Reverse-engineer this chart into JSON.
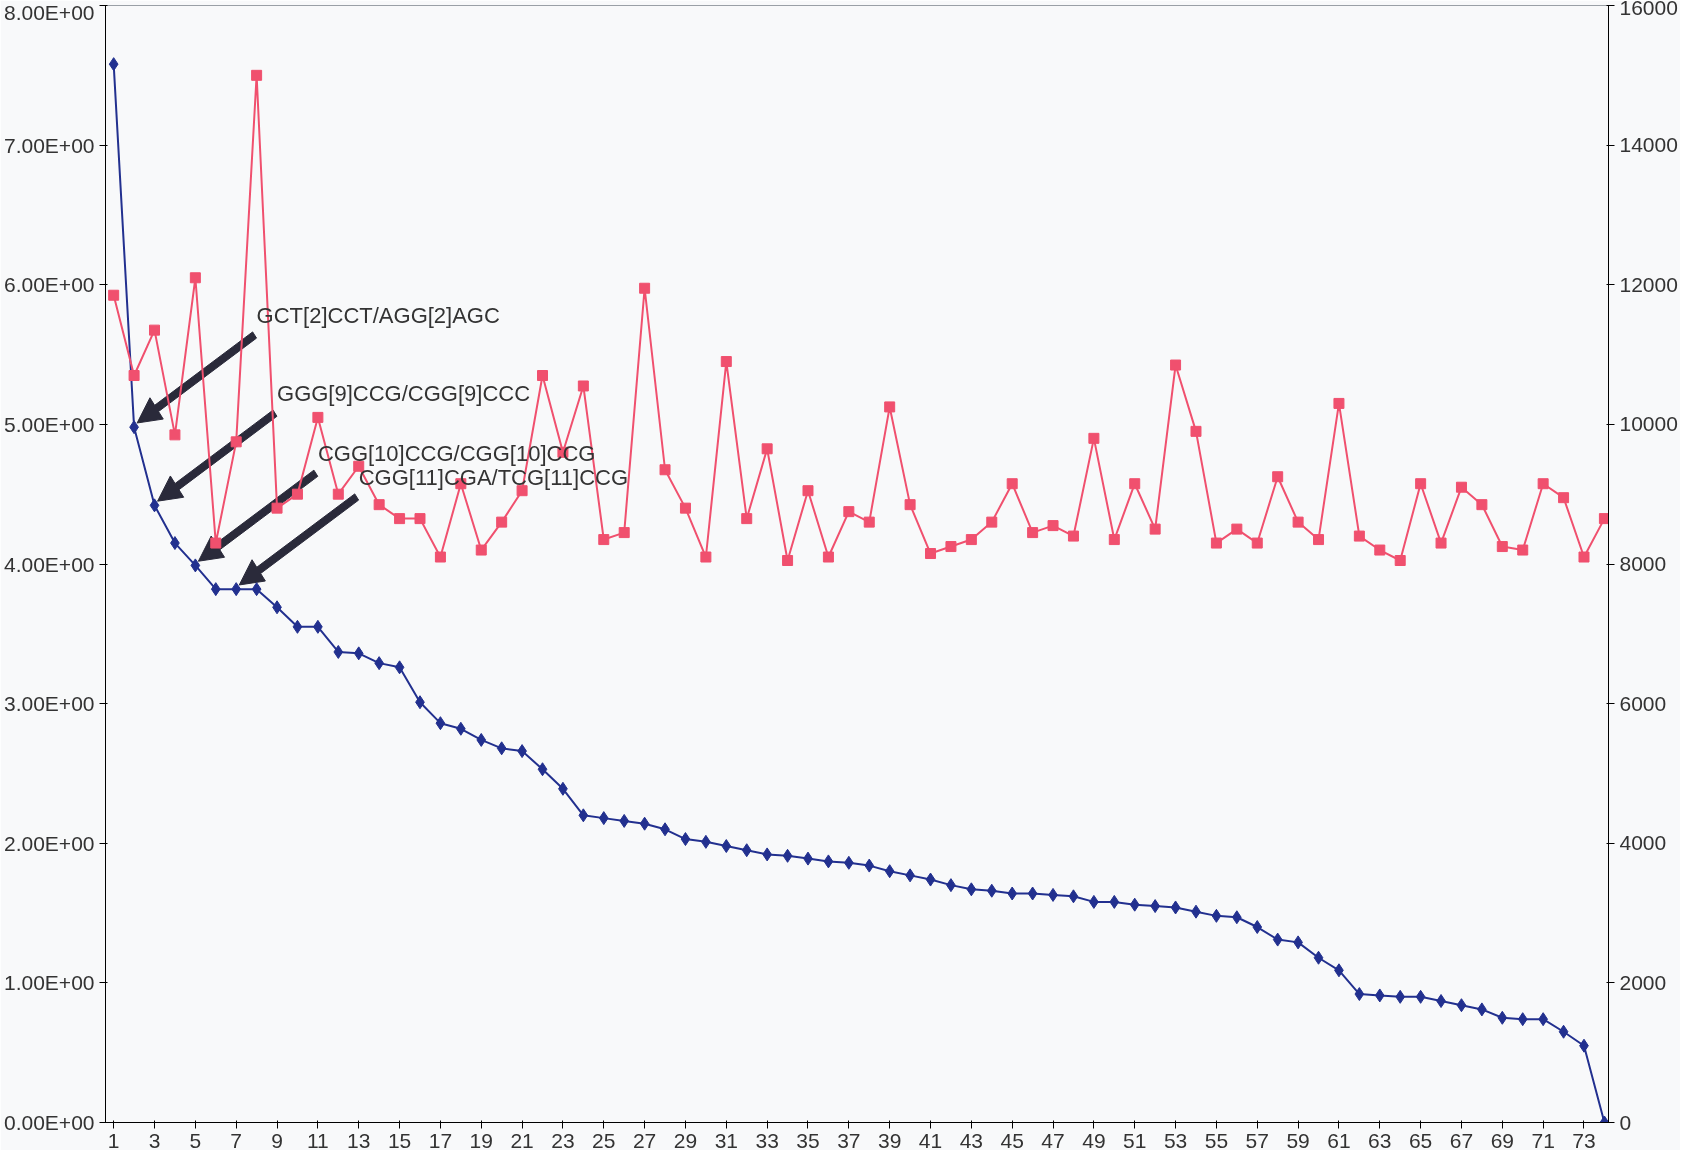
{
  "chart_data": {
    "type": "line",
    "x": [
      1,
      2,
      3,
      4,
      5,
      6,
      7,
      8,
      9,
      10,
      11,
      12,
      13,
      14,
      15,
      16,
      17,
      18,
      19,
      20,
      21,
      22,
      23,
      24,
      25,
      26,
      27,
      28,
      29,
      30,
      31,
      32,
      33,
      34,
      35,
      36,
      37,
      38,
      39,
      40,
      41,
      42,
      43,
      44,
      45,
      46,
      47,
      48,
      49,
      50,
      51,
      52,
      53,
      54,
      55,
      56,
      57,
      58,
      59,
      60,
      61,
      62,
      63,
      64,
      65,
      66,
      67,
      68,
      69,
      70,
      71,
      72,
      73,
      74
    ],
    "xlim": [
      0.6,
      74.2
    ],
    "xticks": [
      1,
      3,
      5,
      7,
      9,
      11,
      13,
      15,
      17,
      19,
      21,
      23,
      25,
      27,
      29,
      31,
      33,
      35,
      37,
      39,
      41,
      43,
      45,
      47,
      49,
      51,
      53,
      55,
      57,
      59,
      61,
      63,
      65,
      67,
      69,
      71,
      73
    ],
    "ylim": [
      0,
      8
    ],
    "yticks": [
      {
        "value": 0,
        "label": "0.00E+00"
      },
      {
        "value": 1,
        "label": "1.00E+00"
      },
      {
        "value": 2,
        "label": "2.00E+00"
      },
      {
        "value": 3,
        "label": "3.00E+00"
      },
      {
        "value": 4,
        "label": "4.00E+00"
      },
      {
        "value": 5,
        "label": "5.00E+00"
      },
      {
        "value": 6,
        "label": "6.00E+00"
      },
      {
        "value": 7,
        "label": "7.00E+00"
      },
      {
        "value": 8,
        "label": "8.00E+00"
      }
    ],
    "y2lim": [
      0,
      16000
    ],
    "y2ticks": [
      0,
      2000,
      4000,
      6000,
      8000,
      10000,
      12000,
      14000,
      16000
    ],
    "series": [
      {
        "color": "#22308f",
        "marker": "diamond",
        "values": [
          7.58,
          4.98,
          4.42,
          4.15,
          3.99,
          3.82,
          3.82,
          3.82,
          3.69,
          3.55,
          3.55,
          3.37,
          3.36,
          3.29,
          3.26,
          3.01,
          2.86,
          2.82,
          2.74,
          2.68,
          2.66,
          2.53,
          2.39,
          2.2,
          2.18,
          2.16,
          2.14,
          2.1,
          2.03,
          2.01,
          1.98,
          1.95,
          1.92,
          1.91,
          1.89,
          1.87,
          1.86,
          1.84,
          1.8,
          1.77,
          1.74,
          1.7,
          1.67,
          1.66,
          1.64,
          1.64,
          1.63,
          1.62,
          1.58,
          1.58,
          1.56,
          1.55,
          1.54,
          1.51,
          1.48,
          1.47,
          1.4,
          1.31,
          1.29,
          1.18,
          1.09,
          0.92,
          0.91,
          0.9,
          0.9,
          0.87,
          0.84,
          0.81,
          0.75,
          0.74,
          0.74,
          0.65,
          0.55,
          0
        ]
      },
      {
        "color": "#f0506e",
        "marker": "square",
        "axis": "y2",
        "values": [
          11850,
          10700,
          11350,
          9850,
          12100,
          8300,
          9750,
          15000,
          8800,
          9000,
          10100,
          9000,
          9400,
          8850,
          8650,
          8650,
          8100,
          9150,
          8200,
          8600,
          9050,
          10700,
          9600,
          10550,
          8350,
          8450,
          11950,
          9350,
          8800,
          8100,
          10900,
          8650,
          9650,
          8050,
          9050,
          8100,
          8750,
          8600,
          10250,
          8850,
          8150,
          8250,
          8350,
          8600,
          9150,
          8450,
          8550,
          8400,
          9800,
          8350,
          9150,
          8500,
          10850,
          9900,
          8300,
          8500,
          8300,
          9250,
          8600,
          8350,
          10300,
          8400,
          8200,
          8050,
          9150,
          8300,
          9100,
          8850,
          8250,
          8200,
          9150,
          8950,
          8100,
          8650
        ]
      }
    ],
    "annotations": [
      "GCT[2]CCT/AGG[2]AGC",
      "GGG[9]CCG/CGG[9]CCC",
      "CGG[10]CCG/CGG[10]CCG",
      "CGG[11]CGA/TCG[11]CCG"
    ]
  }
}
